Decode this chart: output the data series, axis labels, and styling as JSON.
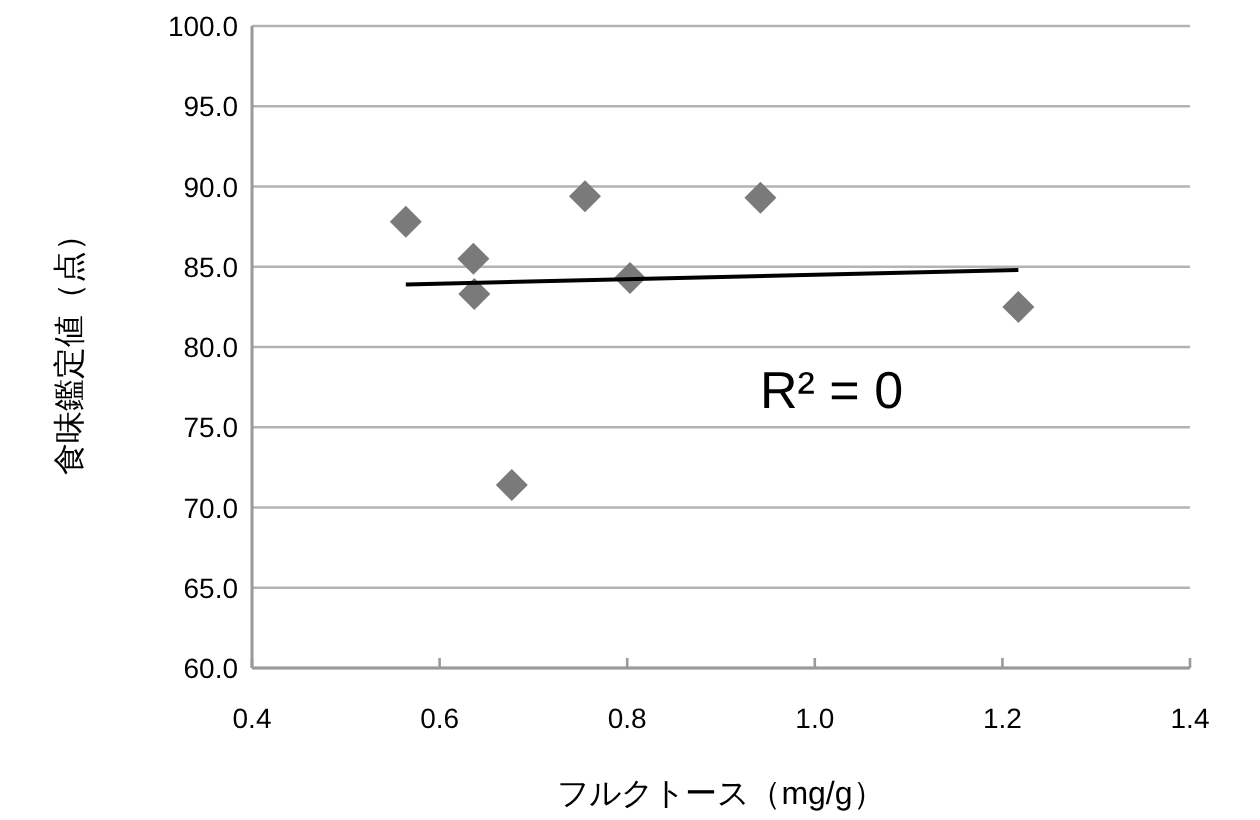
{
  "chart_data": {
    "type": "scatter",
    "xlabel": "フルクトース（mg/g）",
    "ylabel": "食味鑑定値（点）",
    "xlim": [
      0.4,
      1.4
    ],
    "ylim": [
      60,
      100
    ],
    "xticks": [
      0.4,
      0.6,
      0.8,
      {
        "value": 1,
        "label": "1.0"
      },
      1.2,
      1.4
    ],
    "yticks": [
      {
        "value": 60,
        "label": "60.0"
      },
      {
        "value": 65,
        "label": "65.0"
      },
      {
        "value": 70,
        "label": "70.0"
      },
      {
        "value": 75,
        "label": "75.0"
      },
      {
        "value": 80,
        "label": "80.0"
      },
      {
        "value": 85,
        "label": "85.0"
      },
      {
        "value": 90,
        "label": "90.0"
      },
      {
        "value": 95,
        "label": "95.0"
      },
      {
        "value": 100,
        "label": "100.0"
      }
    ],
    "grid": "y",
    "marker": "diamond",
    "series": [
      {
        "color": "#7a7a7a",
        "x": [
          0.564,
          0.636,
          0.637,
          0.677,
          0.755,
          0.803,
          0.942,
          1.217
        ],
        "values": [
          87.8,
          85.5,
          83.3,
          71.4,
          89.4,
          84.3,
          89.3,
          82.5
        ]
      },
      {
        "type": "line",
        "color": "#000000",
        "x": [
          0.564,
          1.217
        ],
        "values": [
          83.9,
          84.8
        ],
        "marker": "none"
      }
    ],
    "annotations": [
      "R² = 0"
    ]
  }
}
